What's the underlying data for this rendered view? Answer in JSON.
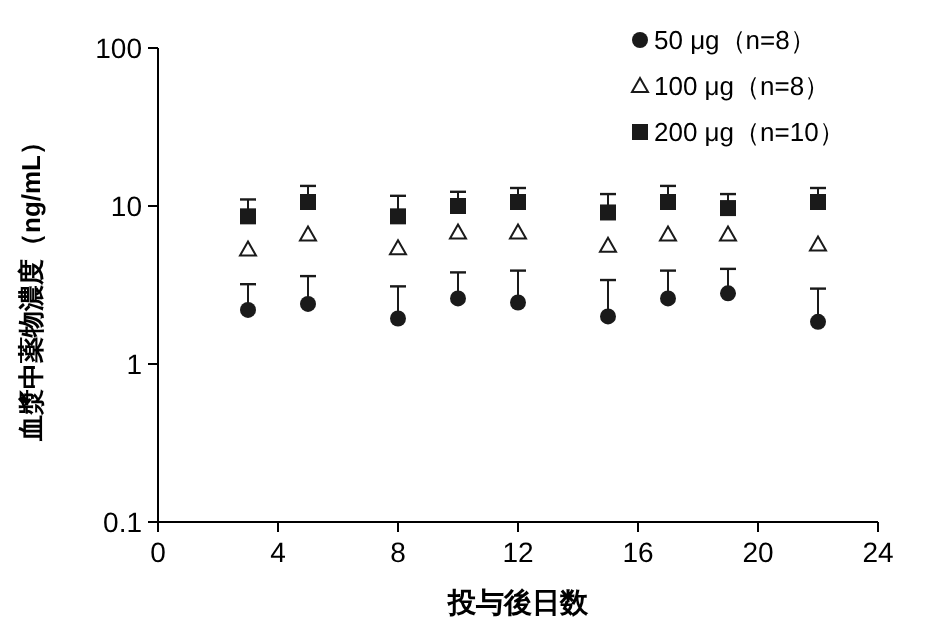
{
  "chart_data": {
    "type": "scatter",
    "xlabel": "投与後日数",
    "ylabel": "血漿中薬物濃度（ng/mL）",
    "log": "y",
    "x": [
      3,
      5,
      8,
      10,
      12,
      15,
      17,
      19,
      22
    ],
    "xlim": [
      0,
      24
    ],
    "xticks": [
      0,
      4,
      8,
      12,
      16,
      20,
      24
    ],
    "ylim": [
      0.1,
      100
    ],
    "yticks": [
      0.1,
      1,
      10,
      100
    ],
    "legend": "top right",
    "series": [
      {
        "name": "50 μg（n=8）",
        "color": "#1a1a1a",
        "marker": "circle",
        "values": [
          2.2,
          2.4,
          1.94,
          2.6,
          2.45,
          2.0,
          2.6,
          2.8,
          1.85
        ],
        "errors": [
          [
            2.2,
            3.2
          ],
          [
            2.4,
            3.6
          ],
          [
            1.94,
            3.1
          ],
          [
            2.6,
            3.8
          ],
          [
            2.45,
            3.9
          ],
          [
            2.0,
            3.4
          ],
          [
            2.6,
            3.9
          ],
          [
            2.8,
            4.0
          ],
          [
            1.85,
            3.0
          ]
        ]
      },
      {
        "name": "100 μg（n=8）",
        "color": "#1a1a1a",
        "marker": "triangle",
        "values": [
          5.3,
          6.6,
          5.4,
          6.8,
          6.8,
          5.6,
          6.6,
          6.6,
          5.7
        ]
      },
      {
        "name": "200 μg（n=10）",
        "color": "#1a1a1a",
        "marker": "square",
        "values": [
          8.6,
          10.6,
          8.6,
          10,
          10.6,
          9.1,
          10.6,
          9.7,
          10.6
        ],
        "errors": [
          [
            8.6,
            11
          ],
          [
            10.6,
            13.4
          ],
          [
            8.6,
            11.6
          ],
          [
            10,
            12.3
          ],
          [
            10.6,
            13
          ],
          [
            9.1,
            11.9
          ],
          [
            10.6,
            13.4
          ],
          [
            9.7,
            11.9
          ],
          [
            10.6,
            13
          ]
        ]
      }
    ]
  }
}
